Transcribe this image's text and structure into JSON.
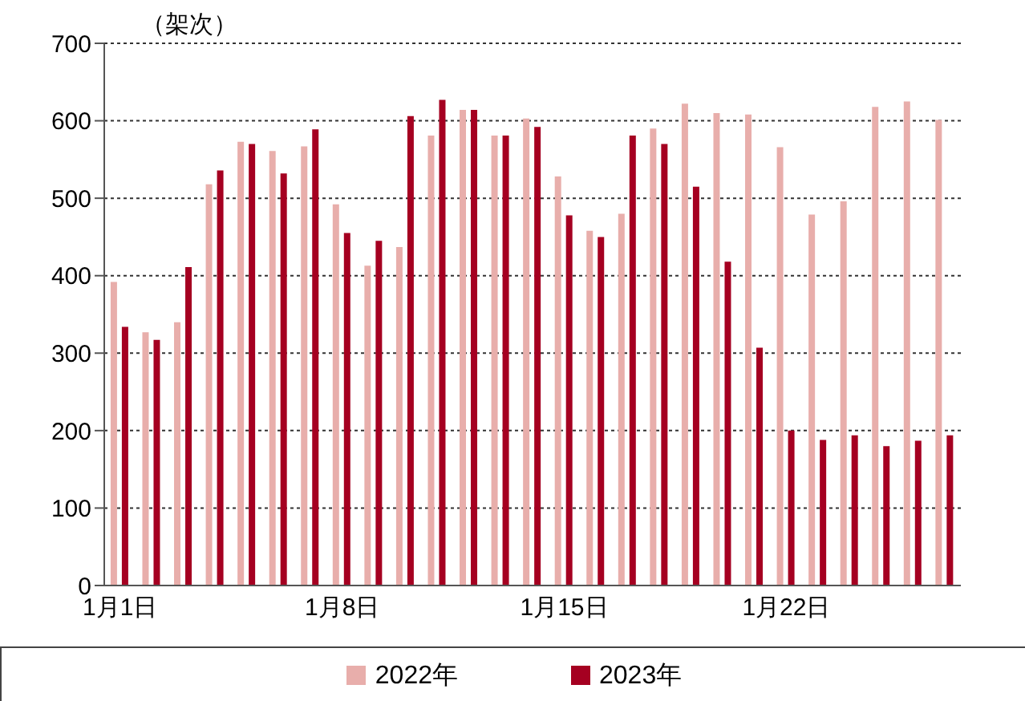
{
  "chart_data": {
    "type": "bar",
    "ylabel": "（架次）",
    "categories": [
      "1月1日",
      null,
      null,
      null,
      null,
      null,
      null,
      "1月8日",
      null,
      null,
      null,
      null,
      null,
      null,
      "1月15日",
      null,
      null,
      null,
      null,
      null,
      null,
      "1月22日",
      null,
      null,
      null,
      null,
      null
    ],
    "series": [
      {
        "name": "2022年",
        "color": "#e8aeab",
        "values": [
          392,
          327,
          340,
          518,
          573,
          561,
          567,
          492,
          413,
          437,
          581,
          614,
          581,
          603,
          528,
          458,
          480,
          590,
          622,
          610,
          608,
          566,
          479,
          496,
          618,
          625,
          601
        ]
      },
      {
        "name": "2023年",
        "color": "#a50021",
        "values": [
          334,
          317,
          411,
          536,
          570,
          532,
          589,
          455,
          445,
          606,
          627,
          614,
          581,
          592,
          478,
          450,
          581,
          570,
          515,
          418,
          307,
          200,
          188,
          194,
          180,
          187,
          194
        ]
      }
    ],
    "ylim": [
      0,
      700
    ],
    "yticks": [
      0,
      100,
      200,
      300,
      400,
      500,
      600,
      700
    ],
    "grid": "y",
    "legend": "bottom"
  }
}
